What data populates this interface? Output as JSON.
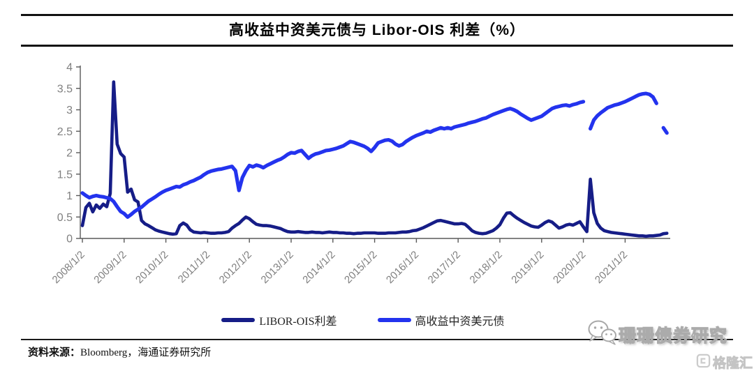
{
  "chart_data": {
    "type": "line",
    "title": "高收益中资美元债与 Libor-OIS 利差（%）",
    "grid": "off",
    "legend_position": "bottom",
    "x_axis": {
      "tick_labels": [
        "2008/1/2",
        "2009/1/2",
        "2010/1/2",
        "2011/1/2",
        "2012/1/2",
        "2013/1/2",
        "2014/1/2",
        "2015/1/2",
        "2016/1/2",
        "2017/1/2",
        "2018/1/2",
        "2019/1/2",
        "2020/1/2",
        "2021/1/2"
      ],
      "tick_years": [
        2008,
        2009,
        2010,
        2011,
        2012,
        2013,
        2014,
        2015,
        2016,
        2017,
        2018,
        2019,
        2020,
        2021
      ]
    },
    "y_axis": {
      "tick_values": [
        0,
        0.5,
        1,
        1.5,
        2,
        2.5,
        3,
        3.5,
        4
      ],
      "tick_labels": [
        "0",
        "0.5",
        "1",
        "1.5",
        "2",
        "2.5",
        "3",
        "3.5",
        "4"
      ],
      "range": [
        0,
        4
      ]
    },
    "series": [
      {
        "name": "LIBOR-OIS利差",
        "color": "#161d87",
        "start_year": 2008,
        "interval_months": 1,
        "values": [
          0.3,
          0.72,
          0.82,
          0.62,
          0.78,
          0.7,
          0.8,
          0.74,
          1.05,
          3.65,
          2.2,
          1.98,
          1.9,
          1.08,
          1.15,
          0.9,
          0.85,
          0.42,
          0.34,
          0.3,
          0.25,
          0.2,
          0.17,
          0.15,
          0.13,
          0.11,
          0.1,
          0.11,
          0.3,
          0.36,
          0.31,
          0.2,
          0.15,
          0.14,
          0.13,
          0.14,
          0.13,
          0.12,
          0.12,
          0.13,
          0.13,
          0.14,
          0.16,
          0.24,
          0.3,
          0.35,
          0.43,
          0.5,
          0.46,
          0.39,
          0.33,
          0.31,
          0.3,
          0.3,
          0.29,
          0.27,
          0.25,
          0.23,
          0.19,
          0.16,
          0.15,
          0.15,
          0.16,
          0.15,
          0.14,
          0.14,
          0.15,
          0.14,
          0.14,
          0.13,
          0.14,
          0.15,
          0.14,
          0.14,
          0.13,
          0.13,
          0.12,
          0.12,
          0.11,
          0.12,
          0.12,
          0.13,
          0.13,
          0.13,
          0.13,
          0.12,
          0.12,
          0.12,
          0.13,
          0.13,
          0.13,
          0.14,
          0.15,
          0.15,
          0.16,
          0.18,
          0.19,
          0.22,
          0.25,
          0.29,
          0.33,
          0.37,
          0.41,
          0.42,
          0.4,
          0.38,
          0.36,
          0.34,
          0.34,
          0.35,
          0.33,
          0.26,
          0.18,
          0.14,
          0.12,
          0.11,
          0.12,
          0.15,
          0.18,
          0.24,
          0.32,
          0.47,
          0.59,
          0.6,
          0.53,
          0.47,
          0.42,
          0.37,
          0.33,
          0.29,
          0.27,
          0.26,
          0.31,
          0.37,
          0.41,
          0.38,
          0.31,
          0.24,
          0.27,
          0.31,
          0.33,
          0.31,
          0.35,
          0.39,
          0.27,
          0.16,
          1.38,
          0.6,
          0.35,
          0.24,
          0.18,
          0.16,
          0.14,
          0.13,
          0.12,
          0.11,
          0.1,
          0.09,
          0.08,
          0.07,
          0.06,
          0.06,
          0.05,
          0.06,
          0.06,
          0.07,
          0.08,
          0.11,
          0.12
        ]
      },
      {
        "name": "高收益中资美元债",
        "color": "#2333ee",
        "start_year": 2008,
        "interval_months": 1,
        "values": [
          1.06,
          1.0,
          0.95,
          0.98,
          1.0,
          0.98,
          0.97,
          0.95,
          0.93,
          0.86,
          0.74,
          0.63,
          0.58,
          0.5,
          0.56,
          0.63,
          0.68,
          0.73,
          0.8,
          0.87,
          0.92,
          0.97,
          1.03,
          1.08,
          1.12,
          1.15,
          1.18,
          1.21,
          1.2,
          1.25,
          1.28,
          1.32,
          1.35,
          1.39,
          1.43,
          1.49,
          1.54,
          1.57,
          1.59,
          1.61,
          1.62,
          1.64,
          1.66,
          1.68,
          1.58,
          1.12,
          1.42,
          1.58,
          1.7,
          1.67,
          1.71,
          1.69,
          1.65,
          1.7,
          1.74,
          1.78,
          1.82,
          1.85,
          1.9,
          1.96,
          2.0,
          1.99,
          2.03,
          2.05,
          1.96,
          1.87,
          1.93,
          1.97,
          1.99,
          2.02,
          2.05,
          2.06,
          2.08,
          2.1,
          2.13,
          2.16,
          2.21,
          2.26,
          2.24,
          2.21,
          2.18,
          2.15,
          2.1,
          2.03,
          2.12,
          2.23,
          2.26,
          2.29,
          2.3,
          2.27,
          2.2,
          2.16,
          2.19,
          2.26,
          2.31,
          2.36,
          2.4,
          2.43,
          2.46,
          2.5,
          2.48,
          2.52,
          2.55,
          2.58,
          2.56,
          2.58,
          2.56,
          2.6,
          2.62,
          2.64,
          2.66,
          2.69,
          2.71,
          2.73,
          2.76,
          2.79,
          2.81,
          2.85,
          2.89,
          2.92,
          2.95,
          2.98,
          3.01,
          3.03,
          3.0,
          2.96,
          2.9,
          2.85,
          2.8,
          2.76,
          2.79,
          2.82,
          2.85,
          2.91,
          2.97,
          3.03,
          3.06,
          3.08,
          3.1,
          3.11,
          3.09,
          3.12,
          3.14,
          3.17,
          3.19,
          null,
          2.56,
          2.76,
          2.86,
          2.93,
          2.99,
          3.05,
          3.08,
          3.11,
          3.13,
          3.16,
          3.19,
          3.23,
          3.27,
          3.31,
          3.35,
          3.37,
          3.38,
          3.36,
          3.3,
          3.15,
          null,
          2.58,
          2.46
        ]
      }
    ]
  },
  "legend": {
    "items": [
      {
        "label": "LIBOR-OIS利差",
        "color": "#161d87"
      },
      {
        "label": "高收益中资美元债",
        "color": "#2333ee"
      }
    ]
  },
  "footer": {
    "source_label": "资料来源：",
    "source_value": "Bloomberg，海通证券研究所"
  },
  "watermark": {
    "brand": "珊珊债券研究",
    "logo_text": "格隆汇"
  },
  "colors": {
    "axis": "#595959",
    "tick_text": "#7f7f7f",
    "rule": "#111111"
  }
}
